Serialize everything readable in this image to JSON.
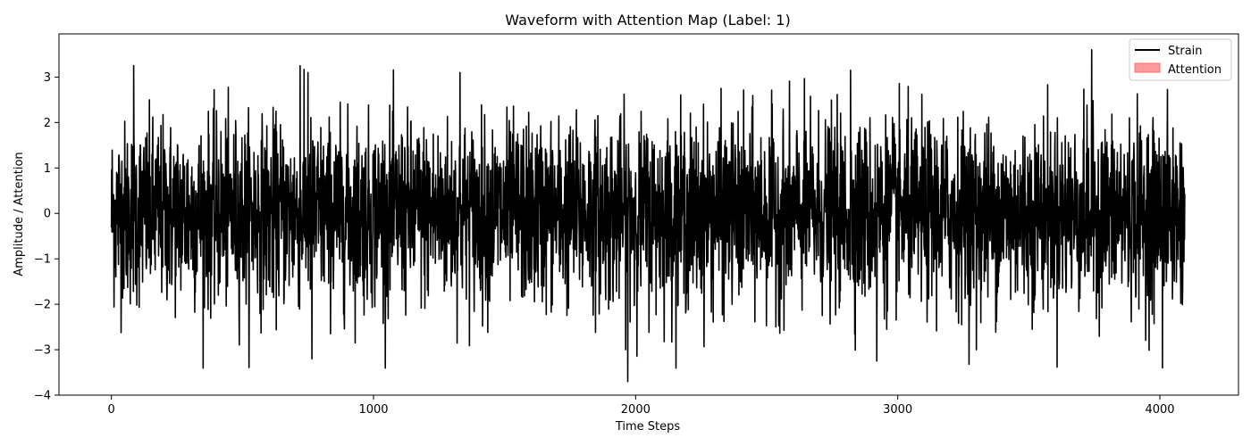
{
  "chart_data": {
    "type": "line",
    "title": "Waveform with Attention Map (Label: 1)",
    "xlabel": "Time Steps",
    "ylabel": "Amplitude / Attention",
    "xlim": [
      -200,
      4300
    ],
    "ylim": [
      -4.0,
      3.95
    ],
    "xticks": [
      0,
      1000,
      2000,
      3000,
      4000
    ],
    "yticks": [
      -4,
      -3,
      -2,
      -1,
      0,
      1,
      2,
      3
    ],
    "xtick_labels": [
      "0",
      "1000",
      "2000",
      "3000",
      "4000"
    ],
    "ytick_labels": [
      "−4",
      "−3",
      "−2",
      "−1",
      "0",
      "1",
      "2",
      "3"
    ],
    "grid": false,
    "legend_position": "top-right",
    "legend": [
      {
        "label": "Strain",
        "kind": "line",
        "color": "#000000"
      },
      {
        "label": "Attention",
        "kind": "patch",
        "color": "#ff9a9a",
        "edge": "#ff5555"
      }
    ],
    "series": [
      {
        "name": "Strain",
        "color": "#000000",
        "n_points": 4096,
        "x_range": [
          0,
          4095
        ],
        "approx_stats": {
          "mean": 0.0,
          "std": 1.0,
          "min": -3.7,
          "max": 3.6
        },
        "peaks": [
          {
            "x": 85,
            "y": 3.25
          },
          {
            "x": 720,
            "y": 3.25
          },
          {
            "x": 750,
            "y": 3.1
          },
          {
            "x": 1330,
            "y": 3.1
          },
          {
            "x": 2820,
            "y": 3.15
          },
          {
            "x": 3740,
            "y": 3.6
          },
          {
            "x": 1970,
            "y": -3.7
          },
          {
            "x": 765,
            "y": -3.2
          },
          {
            "x": 2920,
            "y": -3.25
          },
          {
            "x": 3300,
            "y": -3.0
          },
          {
            "x": 4010,
            "y": -3.4
          }
        ]
      },
      {
        "name": "Attention",
        "color": "#ff9a9a",
        "values": []
      }
    ]
  }
}
